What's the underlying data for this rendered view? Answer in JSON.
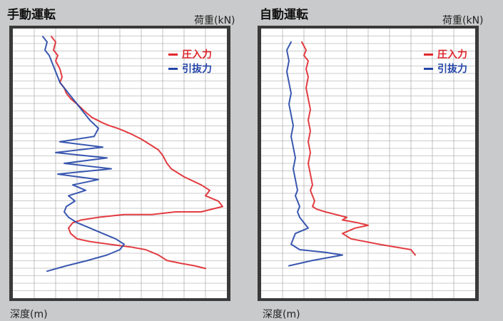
{
  "colors": {
    "compression": "#e0282e",
    "pullout": "#2546a8",
    "grid": "#9a9a9a",
    "plot_bg": "#ffffff"
  },
  "legend": {
    "compression": "圧入力",
    "pullout": "引抜力",
    "dash": "ー"
  },
  "chart_data": [
    {
      "type": "line",
      "title": "手動運転",
      "xlabel": "荷重(kN)",
      "ylabel": "深度(m)",
      "xlim": [
        0,
        100
      ],
      "ylim": [
        0,
        100
      ],
      "grid": true,
      "legend_position": "top-right",
      "series": [
        {
          "name": "圧入力",
          "x": [
            18,
            20,
            19,
            21,
            20,
            22,
            23,
            22,
            24,
            25,
            27,
            30,
            34,
            37,
            42,
            45,
            49,
            52,
            55,
            60,
            64,
            68,
            70,
            72,
            74,
            80,
            88,
            92,
            90,
            96,
            98,
            88,
            76,
            65,
            52,
            40,
            32,
            28,
            26,
            27,
            30,
            36,
            45,
            55,
            62,
            65,
            68,
            70,
            72,
            78,
            85,
            90
          ],
          "y": [
            3,
            5,
            8,
            10,
            12,
            15,
            18,
            20,
            22,
            24,
            26,
            28,
            31,
            33,
            35,
            36,
            37,
            38,
            39,
            41,
            43,
            45,
            47,
            50,
            52,
            55,
            58,
            60,
            62,
            64,
            66,
            68,
            68,
            69,
            69,
            70,
            71,
            72,
            74,
            76,
            78,
            79,
            80,
            81,
            82,
            83,
            84,
            85,
            86,
            87,
            88,
            89
          ]
        },
        {
          "name": "引抜力",
          "x": [
            14,
            16,
            15,
            17,
            18,
            19,
            20,
            21,
            22,
            24,
            26,
            28,
            30,
            33,
            36,
            40,
            38,
            22,
            42,
            20,
            44,
            24,
            46,
            21,
            40,
            28,
            34,
            26,
            29,
            25,
            24,
            26,
            30,
            36,
            42,
            48,
            52,
            50,
            44,
            35,
            25,
            16
          ],
          "y": [
            3,
            5,
            8,
            10,
            12,
            14,
            16,
            18,
            20,
            22,
            24,
            26,
            28,
            31,
            34,
            37,
            40,
            42,
            44,
            46,
            48,
            50,
            52,
            54,
            56,
            58,
            60,
            62,
            64,
            66,
            68,
            70,
            72,
            74,
            76,
            78,
            80,
            82,
            84,
            86,
            88,
            90
          ]
        }
      ]
    },
    {
      "type": "line",
      "title": "自動運転",
      "xlabel": "荷重(kN)",
      "ylabel": "深度(m)",
      "xlim": [
        0,
        100
      ],
      "ylim": [
        0,
        100
      ],
      "grid": true,
      "legend_position": "top-right",
      "series": [
        {
          "name": "圧入力",
          "x": [
            19,
            21,
            20,
            22,
            21,
            22,
            21,
            22,
            23,
            22,
            23,
            22,
            23,
            22,
            23,
            24,
            23,
            24,
            25,
            24,
            26,
            30,
            35,
            40,
            38,
            45,
            50,
            44,
            38,
            42,
            55,
            70,
            72
          ],
          "y": [
            5,
            8,
            10,
            12,
            15,
            18,
            22,
            26,
            30,
            34,
            38,
            42,
            46,
            50,
            54,
            58,
            60,
            62,
            64,
            66,
            67,
            68,
            69,
            70,
            71,
            72,
            73,
            74,
            76,
            78,
            80,
            82,
            84
          ]
        },
        {
          "name": "引抜力",
          "x": [
            14,
            12,
            13,
            12,
            13,
            14,
            13,
            14,
            15,
            14,
            15,
            16,
            15,
            16,
            17,
            16,
            17,
            18,
            17,
            18,
            20,
            22,
            16,
            15,
            14,
            18,
            30,
            38,
            24,
            13
          ],
          "y": [
            5,
            8,
            12,
            16,
            20,
            24,
            28,
            32,
            36,
            40,
            44,
            48,
            52,
            56,
            60,
            62,
            64,
            66,
            68,
            70,
            72,
            74,
            76,
            78,
            80,
            82,
            83,
            84,
            86,
            88
          ]
        }
      ]
    }
  ]
}
